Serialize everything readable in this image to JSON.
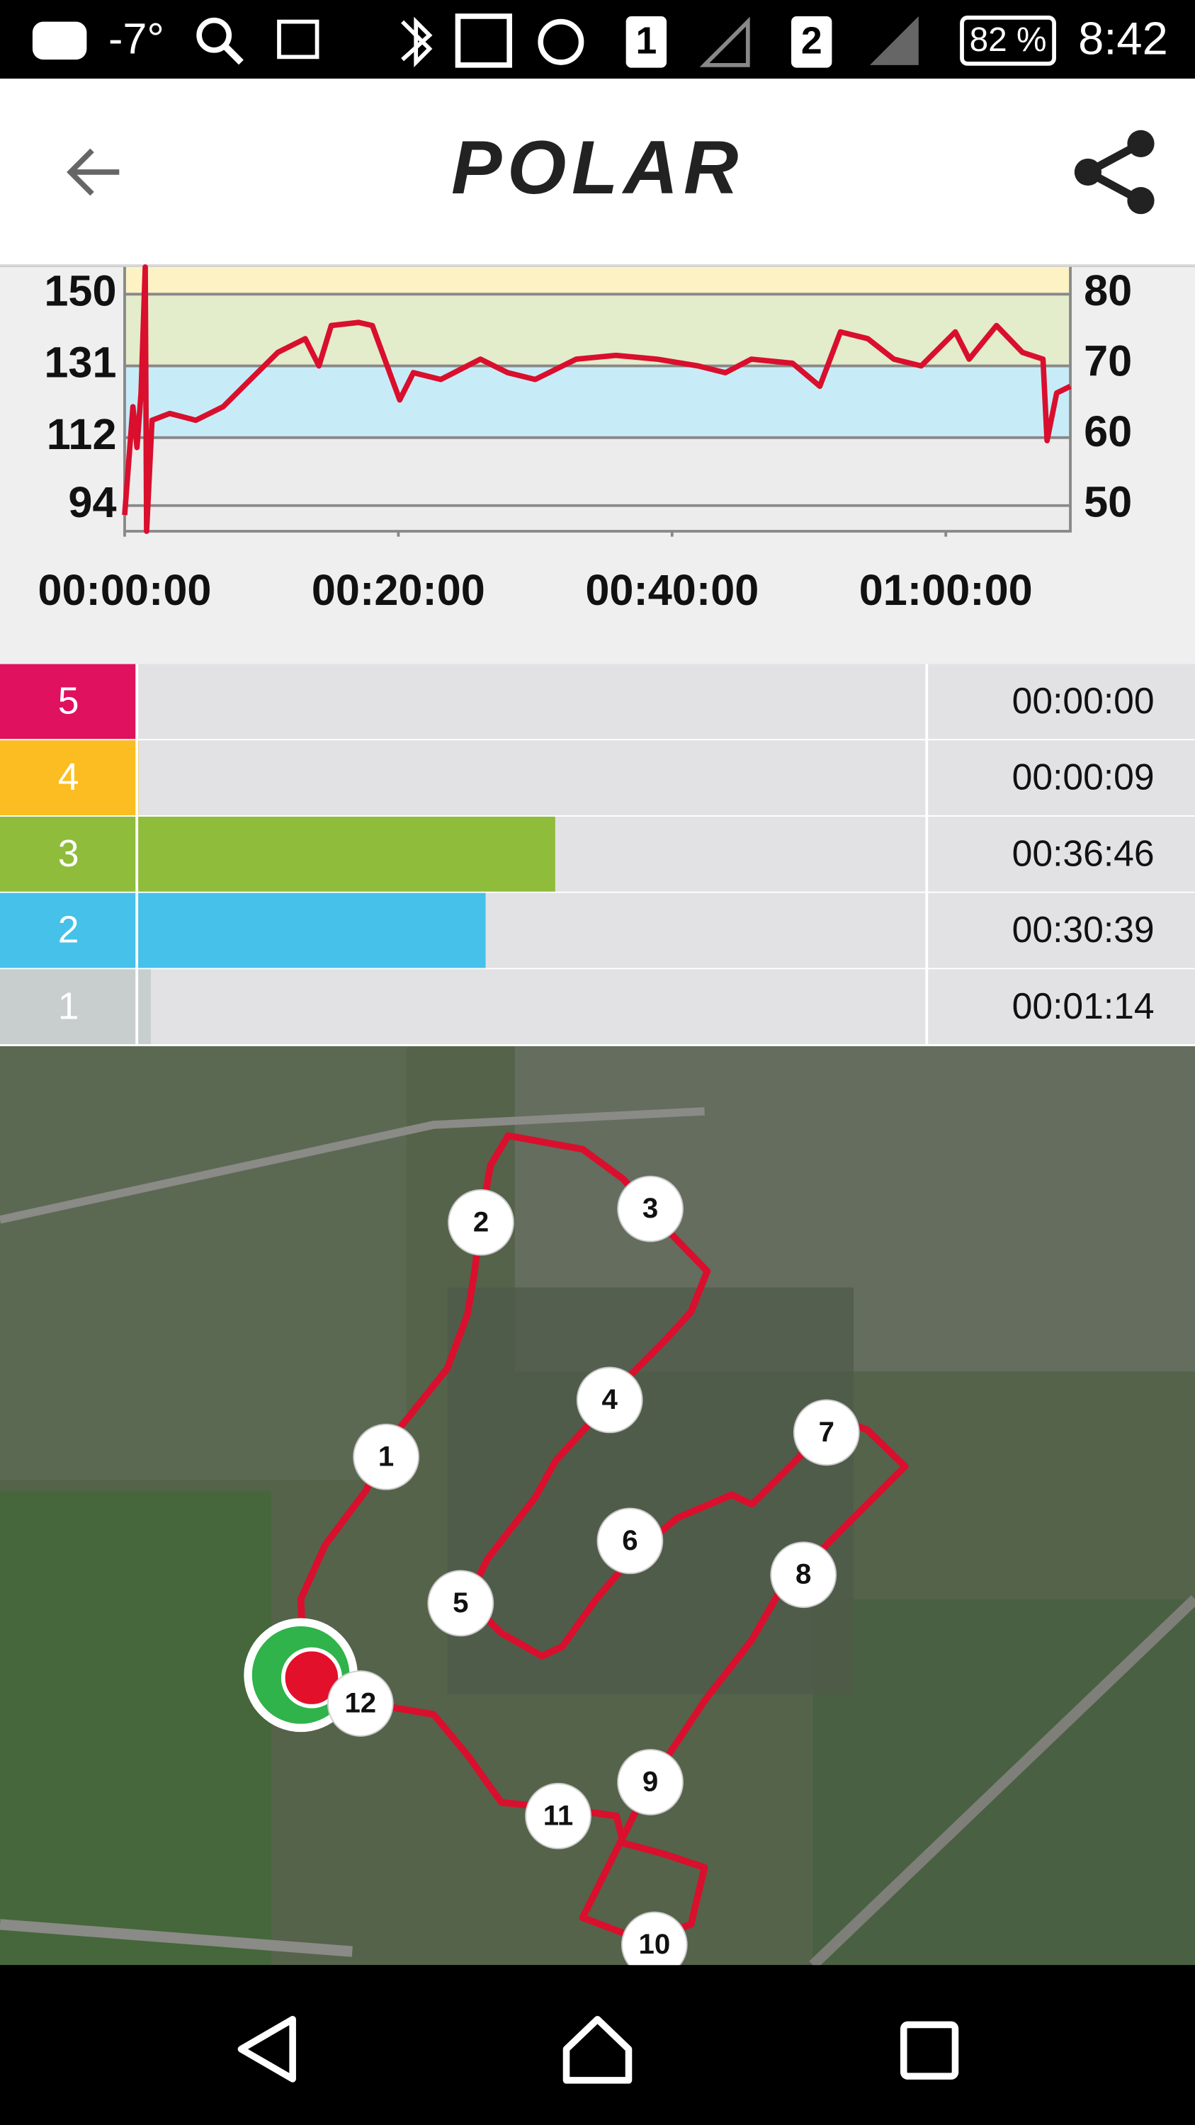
{
  "status_bar": {
    "temperature": "-7°",
    "sim1": "1",
    "sim2": "2",
    "battery": "82 %",
    "time": "8:42"
  },
  "header": {
    "logo": "POLAR"
  },
  "chart_data": [
    {
      "type": "line",
      "color": "#d90f2d",
      "x": [
        0,
        0.6,
        0.9,
        1.2,
        1.5,
        1.6,
        2.0,
        3.3,
        5.2,
        7.2,
        9.2,
        11.2,
        13.2,
        14.2,
        15.1,
        17.1,
        18.1,
        20.1,
        21.1,
        23.1,
        26.0,
        28.0,
        30.0,
        33.0,
        35.9,
        38.9,
        41.9,
        43.9,
        45.8,
        48.8,
        50.8,
        52.3,
        54.3,
        56.2,
        58.2,
        60.7,
        61.7,
        63.7,
        65.6,
        67.1,
        67.4,
        68.1,
        69.1
      ],
      "values": [
        91.5,
        120.2,
        109.4,
        123.8,
        157.2,
        87.2,
        116.6,
        118.4,
        116.6,
        120.2,
        127.4,
        134.6,
        138.2,
        131.0,
        141.7,
        142.5,
        141.7,
        122.0,
        129.2,
        127.4,
        132.8,
        129.2,
        127.4,
        132.8,
        133.8,
        132.8,
        131.0,
        129.2,
        132.8,
        131.7,
        125.6,
        140.0,
        138.2,
        132.8,
        131.0,
        140.0,
        132.8,
        141.7,
        134.6,
        132.8,
        111.2,
        123.8,
        125.6
      ],
      "xlim": [
        0,
        69.1
      ],
      "xticks": [
        {
          "value": 0,
          "label": "00:00:00"
        },
        {
          "value": 20,
          "label": "00:20:00"
        },
        {
          "value": 40,
          "label": "00:40:00"
        },
        {
          "value": 60,
          "label": "01:00:00"
        }
      ],
      "ylim": [
        87.2,
        157.2
      ],
      "yticks": [
        94,
        112,
        131,
        150
      ],
      "y2lim": [
        46.3,
        83.8
      ],
      "y2ticks": [
        50,
        60,
        70,
        80
      ],
      "band_edges": [
        112,
        131,
        150
      ],
      "band_colors": [
        "#c8ecf7",
        "#e3eccb",
        "#fdf2c4"
      ],
      "grid": true
    },
    {
      "type": "hbar",
      "categories": [
        "5",
        "4",
        "3",
        "2",
        "1"
      ],
      "values": [
        0,
        9,
        2206,
        1839,
        74
      ],
      "value_labels": [
        "00:00:00",
        "00:00:09",
        "00:36:46",
        "00:30:39",
        "00:01:14"
      ],
      "colors": [
        "#e0115f",
        "#fbbd22",
        "#8fbc3b",
        "#45c1ea",
        "#c8cdce"
      ],
      "xlim": [
        0,
        4165
      ]
    }
  ],
  "map": {
    "markers": [
      "1",
      "2",
      "3",
      "4",
      "5",
      "6",
      "7",
      "8",
      "9",
      "10",
      "11",
      "12"
    ]
  }
}
